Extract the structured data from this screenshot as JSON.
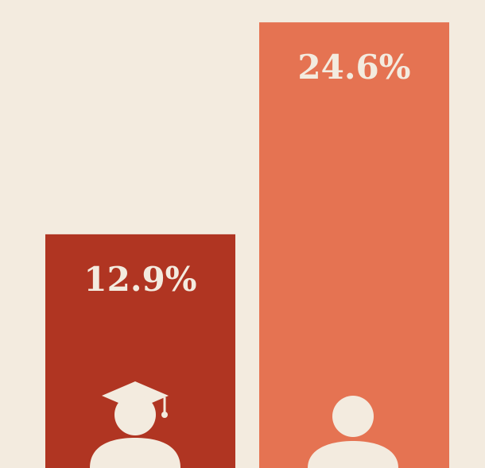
{
  "chart_data": {
    "type": "bar",
    "values": [
      12.9,
      24.6
    ],
    "value_labels": [
      "12.9%",
      "24.6%"
    ],
    "colors": [
      "#b03522",
      "#e57352"
    ]
  }
}
